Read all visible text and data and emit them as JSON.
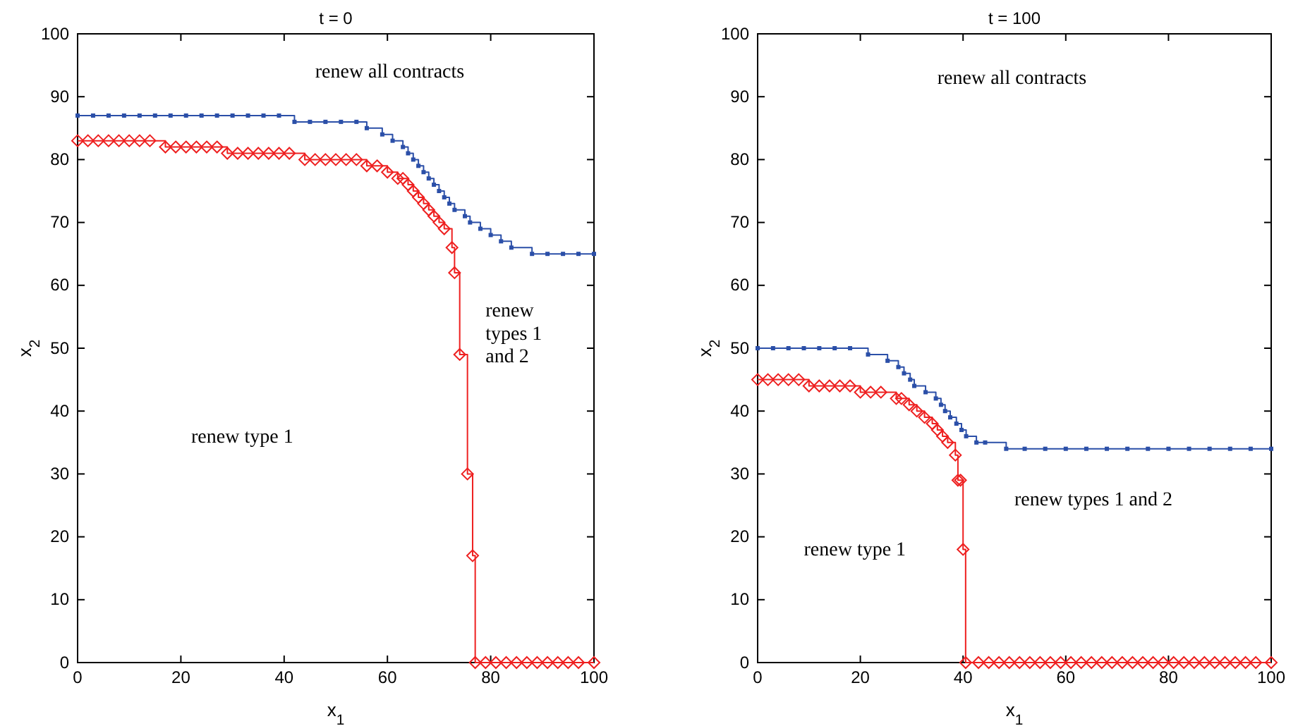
{
  "chart_data": [
    {
      "type": "step",
      "title": "t = 0",
      "xlabel": "x$_{1}$",
      "ylabel": "x$_{2}$",
      "xlim": [
        0,
        100
      ],
      "ylim": [
        0,
        100
      ],
      "xticks": [
        0,
        20,
        40,
        60,
        80,
        100
      ],
      "yticks": [
        0,
        10,
        20,
        30,
        40,
        50,
        60,
        70,
        80,
        90,
        100
      ],
      "grid": false,
      "series": [
        {
          "color": "#2b4fa8",
          "marker": "square",
          "x": [
            0,
            3,
            6,
            9,
            12,
            15,
            18,
            21,
            24,
            27,
            30,
            33,
            36,
            39,
            42,
            45,
            48,
            51,
            54,
            56,
            59,
            61,
            63,
            64,
            65,
            66,
            67,
            68,
            69,
            70,
            71,
            72,
            73,
            75,
            76,
            78,
            80,
            82,
            84,
            88,
            91,
            94,
            97,
            100
          ],
          "values": [
            87,
            87,
            87,
            87,
            87,
            87,
            87,
            87,
            87,
            87,
            87,
            87,
            87,
            87,
            86,
            86,
            86,
            86,
            86,
            85,
            84,
            83,
            82,
            81,
            80,
            79,
            78,
            77,
            76,
            75,
            74,
            73,
            72,
            71,
            70,
            69,
            68,
            67,
            66,
            65,
            65,
            65,
            65,
            65
          ]
        },
        {
          "color": "#ee2020",
          "marker": "diamond",
          "x": [
            0,
            2,
            4,
            6,
            8,
            10,
            12,
            14,
            17,
            19,
            21,
            23,
            25,
            27,
            29,
            31,
            33,
            35,
            37,
            39,
            41,
            44,
            46,
            48,
            50,
            52,
            54,
            56,
            58,
            60,
            62,
            63,
            64,
            65,
            66,
            67,
            68,
            69,
            70,
            71,
            72.5,
            73,
            74,
            75.5,
            76.5,
            77,
            79,
            81,
            83,
            85,
            87,
            89,
            91,
            93,
            95,
            97,
            100
          ],
          "values": [
            83,
            83,
            83,
            83,
            83,
            83,
            83,
            83,
            82,
            82,
            82,
            82,
            82,
            82,
            81,
            81,
            81,
            81,
            81,
            81,
            81,
            80,
            80,
            80,
            80,
            80,
            80,
            79,
            79,
            78,
            77,
            77,
            76,
            75,
            74,
            73,
            72,
            71,
            70,
            69,
            66,
            62,
            49,
            30,
            17,
            0,
            0,
            0,
            0,
            0,
            0,
            0,
            0,
            0,
            0,
            0,
            0
          ]
        }
      ],
      "annotations": [
        "renew all contracts",
        "renew type 1",
        "renew types 1 and 2"
      ]
    },
    {
      "type": "step",
      "title": "t = 100",
      "xlabel": "x$_{1}$",
      "ylabel": "x$_{2}$",
      "xlim": [
        0,
        100
      ],
      "ylim": [
        0,
        100
      ],
      "xticks": [
        0,
        20,
        40,
        60,
        80,
        100
      ],
      "yticks": [
        0,
        10,
        20,
        30,
        40,
        50,
        60,
        70,
        80,
        90,
        100
      ],
      "grid": false,
      "series": [
        {
          "color": "#2b4fa8",
          "marker": "square",
          "x": [
            0,
            3,
            6,
            9,
            12,
            15,
            18,
            21.5,
            25.3,
            27.4,
            28.5,
            29.7,
            30.5,
            32.7,
            34.7,
            35.7,
            36.5,
            37.5,
            38.7,
            39.7,
            40.6,
            42.6,
            44.3,
            48.4,
            52,
            56,
            60,
            64,
            68,
            72,
            76,
            80,
            84,
            88,
            92,
            96,
            100
          ],
          "values": [
            50,
            50,
            50,
            50,
            50,
            50,
            50,
            49,
            48,
            47,
            46,
            45,
            44,
            43,
            42,
            41,
            40,
            39,
            38,
            37,
            36,
            35,
            35,
            34,
            34,
            34,
            34,
            34,
            34,
            34,
            34,
            34,
            34,
            34,
            34,
            34,
            34
          ]
        },
        {
          "color": "#ee2020",
          "marker": "diamond",
          "x": [
            0,
            2,
            4,
            6,
            8,
            10,
            12,
            14,
            16,
            18,
            20,
            22,
            24,
            27,
            28,
            29.5,
            31,
            32.5,
            34,
            35,
            36,
            37,
            38.5,
            39,
            39.5,
            40,
            40.5,
            43,
            45,
            47,
            49,
            51,
            53,
            55,
            57,
            59,
            61,
            63,
            65,
            67,
            69,
            71,
            73,
            75,
            77,
            79,
            81,
            83,
            85,
            87,
            89,
            91,
            93,
            95,
            97,
            100
          ],
          "values": [
            45,
            45,
            45,
            45,
            45,
            44,
            44,
            44,
            44,
            44,
            43,
            43,
            43,
            42,
            42,
            41,
            40,
            39,
            38,
            37,
            36,
            35,
            33,
            29,
            29,
            18,
            0,
            0,
            0,
            0,
            0,
            0,
            0,
            0,
            0,
            0,
            0,
            0,
            0,
            0,
            0,
            0,
            0,
            0,
            0,
            0,
            0,
            0,
            0,
            0,
            0,
            0,
            0,
            0,
            0,
            0
          ]
        }
      ],
      "annotations": [
        "renew all contracts",
        "renew types 1 and 2",
        "renew type 1"
      ]
    }
  ]
}
